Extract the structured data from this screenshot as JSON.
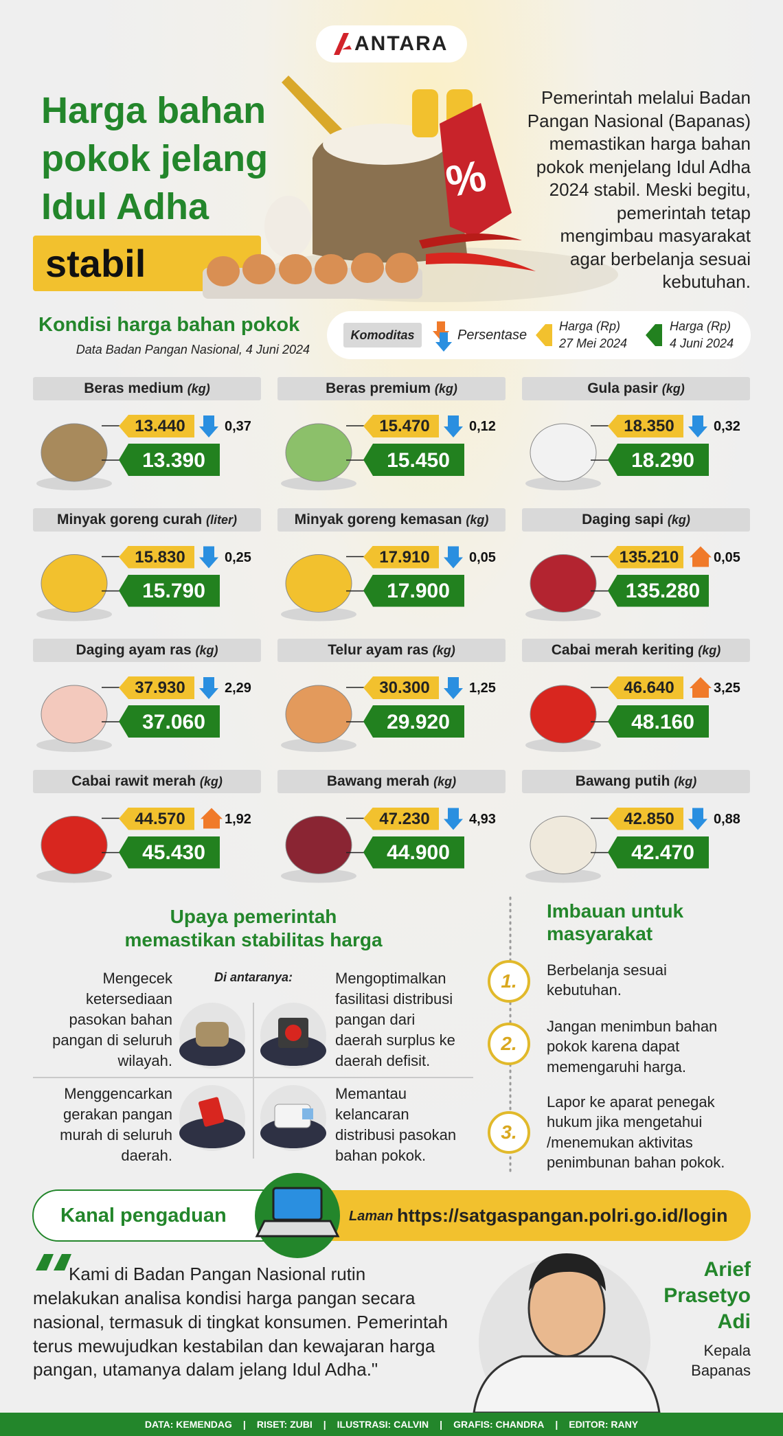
{
  "header": {
    "logo": "ANTARA",
    "title_lines": [
      "Harga bahan",
      "pokok jelang",
      "Idul Adha"
    ],
    "highlight": "stabil",
    "price_tag": "%",
    "intro_lines": [
      "Pemerintah melalui Badan",
      "Pangan Nasional (Bapanas)",
      "memastikan harga bahan",
      "pokok menjelang Idul Adha",
      "2024 stabil. Meski begitu,",
      "pemerintah tetap",
      "mengimbau masyarakat",
      "agar berbelanja sesuai",
      "kebutuhan."
    ]
  },
  "prices": {
    "title": "Kondisi harga bahan pokok",
    "source": "Data Badan Pangan Nasional, 4 Juni 2024",
    "legend": {
      "commodity": "Komoditas",
      "percent": "Persentase",
      "price_before": [
        "Harga (Rp)",
        "27 Mei 2024"
      ],
      "price_after": [
        "Harga (Rp)",
        "4 Juni 2024"
      ]
    },
    "items": [
      {
        "name": "Beras medium",
        "unit": "(kg)",
        "price_before": "13.440",
        "price_after": "13.390",
        "change": "0,37",
        "trend": "down"
      },
      {
        "name": "Beras premium",
        "unit": "(kg)",
        "price_before": "15.470",
        "price_after": "15.450",
        "change": "0,12",
        "trend": "down"
      },
      {
        "name": "Gula pasir",
        "unit": "(kg)",
        "price_before": "18.350",
        "price_after": "18.290",
        "change": "0,32",
        "trend": "down"
      },
      {
        "name": "Minyak goreng curah",
        "unit": "(liter)",
        "price_before": "15.830",
        "price_after": "15.790",
        "change": "0,25",
        "trend": "down"
      },
      {
        "name": "Minyak goreng kemasan",
        "unit": "(kg)",
        "price_before": "17.910",
        "price_after": "17.900",
        "change": "0,05",
        "trend": "down"
      },
      {
        "name": "Daging sapi",
        "unit": "(kg)",
        "price_before": "135.210",
        "price_after": "135.280",
        "change": "0,05",
        "trend": "up"
      },
      {
        "name": "Daging ayam ras",
        "unit": "(kg)",
        "price_before": "37.930",
        "price_after": "37.060",
        "change": "2,29",
        "trend": "down"
      },
      {
        "name": "Telur ayam ras",
        "unit": "(kg)",
        "price_before": "30.300",
        "price_after": "29.920",
        "change": "1,25",
        "trend": "down"
      },
      {
        "name": "Cabai merah keriting",
        "unit": "(kg)",
        "price_before": "46.640",
        "price_after": "48.160",
        "change": "3,25",
        "trend": "up"
      },
      {
        "name": "Cabai rawit merah",
        "unit": "(kg)",
        "price_before": "44.570",
        "price_after": "45.430",
        "change": "1,92",
        "trend": "up"
      },
      {
        "name": "Bawang merah",
        "unit": "(kg)",
        "price_before": "47.230",
        "price_after": "44.900",
        "change": "4,93",
        "trend": "down"
      },
      {
        "name": "Bawang putih",
        "unit": "(kg)",
        "price_before": "42.850",
        "price_after": "42.470",
        "change": "0,88",
        "trend": "down"
      }
    ]
  },
  "efforts": {
    "title_lines": [
      "Upaya pemerintah",
      "memastikan stabilitas harga"
    ],
    "subtitle": "Di antaranya:",
    "items": [
      [
        "Mengecek",
        "ketersediaan",
        "pasokan bahan",
        "pangan di seluruh",
        "wilayah."
      ],
      [
        "Mengoptimalkan",
        "fasilitasi distribusi",
        "pangan dari",
        "daerah surplus ke",
        "daerah defisit."
      ],
      [
        "Menggencarkan",
        "gerakan pangan",
        "murah di seluruh",
        "daerah."
      ],
      [
        "Memantau",
        "kelancaran",
        "distribusi pasokan",
        "bahan pokok."
      ]
    ]
  },
  "appeals": {
    "title_lines": [
      "Imbauan untuk",
      "masyarakat"
    ],
    "items": [
      {
        "number": "1.",
        "lines": [
          "Berbelanja sesuai",
          "kebutuhan."
        ]
      },
      {
        "number": "2.",
        "lines": [
          "Jangan menimbun bahan",
          "pokok karena dapat",
          "memengaruhi harga."
        ]
      },
      {
        "number": "3.",
        "lines": [
          "Lapor ke aparat penegak",
          "hukum jika mengetahui",
          "/menemukan aktivitas",
          "penimbunan bahan pokok."
        ]
      }
    ]
  },
  "complaint": {
    "label": "Kanal pengaduan",
    "prefix": "Laman",
    "url": "https://satgaspangan.polri.go.id/login"
  },
  "quote": {
    "lines": [
      "Kami di Badan Pangan Nasional rutin",
      "melakukan analisa kondisi harga pangan secara",
      "nasional, termasuk di tingkat konsumen. Pemerintah",
      "terus mewujudkan kestabilan dan kewajaran harga",
      "pangan, utamanya dalam jelang Idul Adha.\""
    ],
    "name_lines": [
      "Arief",
      "Prasetyo",
      "Adi"
    ],
    "role_lines": [
      "Kepala",
      "Bapanas"
    ]
  },
  "credits": [
    "DATA: KEMENDAG",
    "RISET: ZUBI",
    "ILUSTRASI: CALVIN",
    "GRAFIS: CHANDRA",
    "EDITOR: RANY"
  ]
}
